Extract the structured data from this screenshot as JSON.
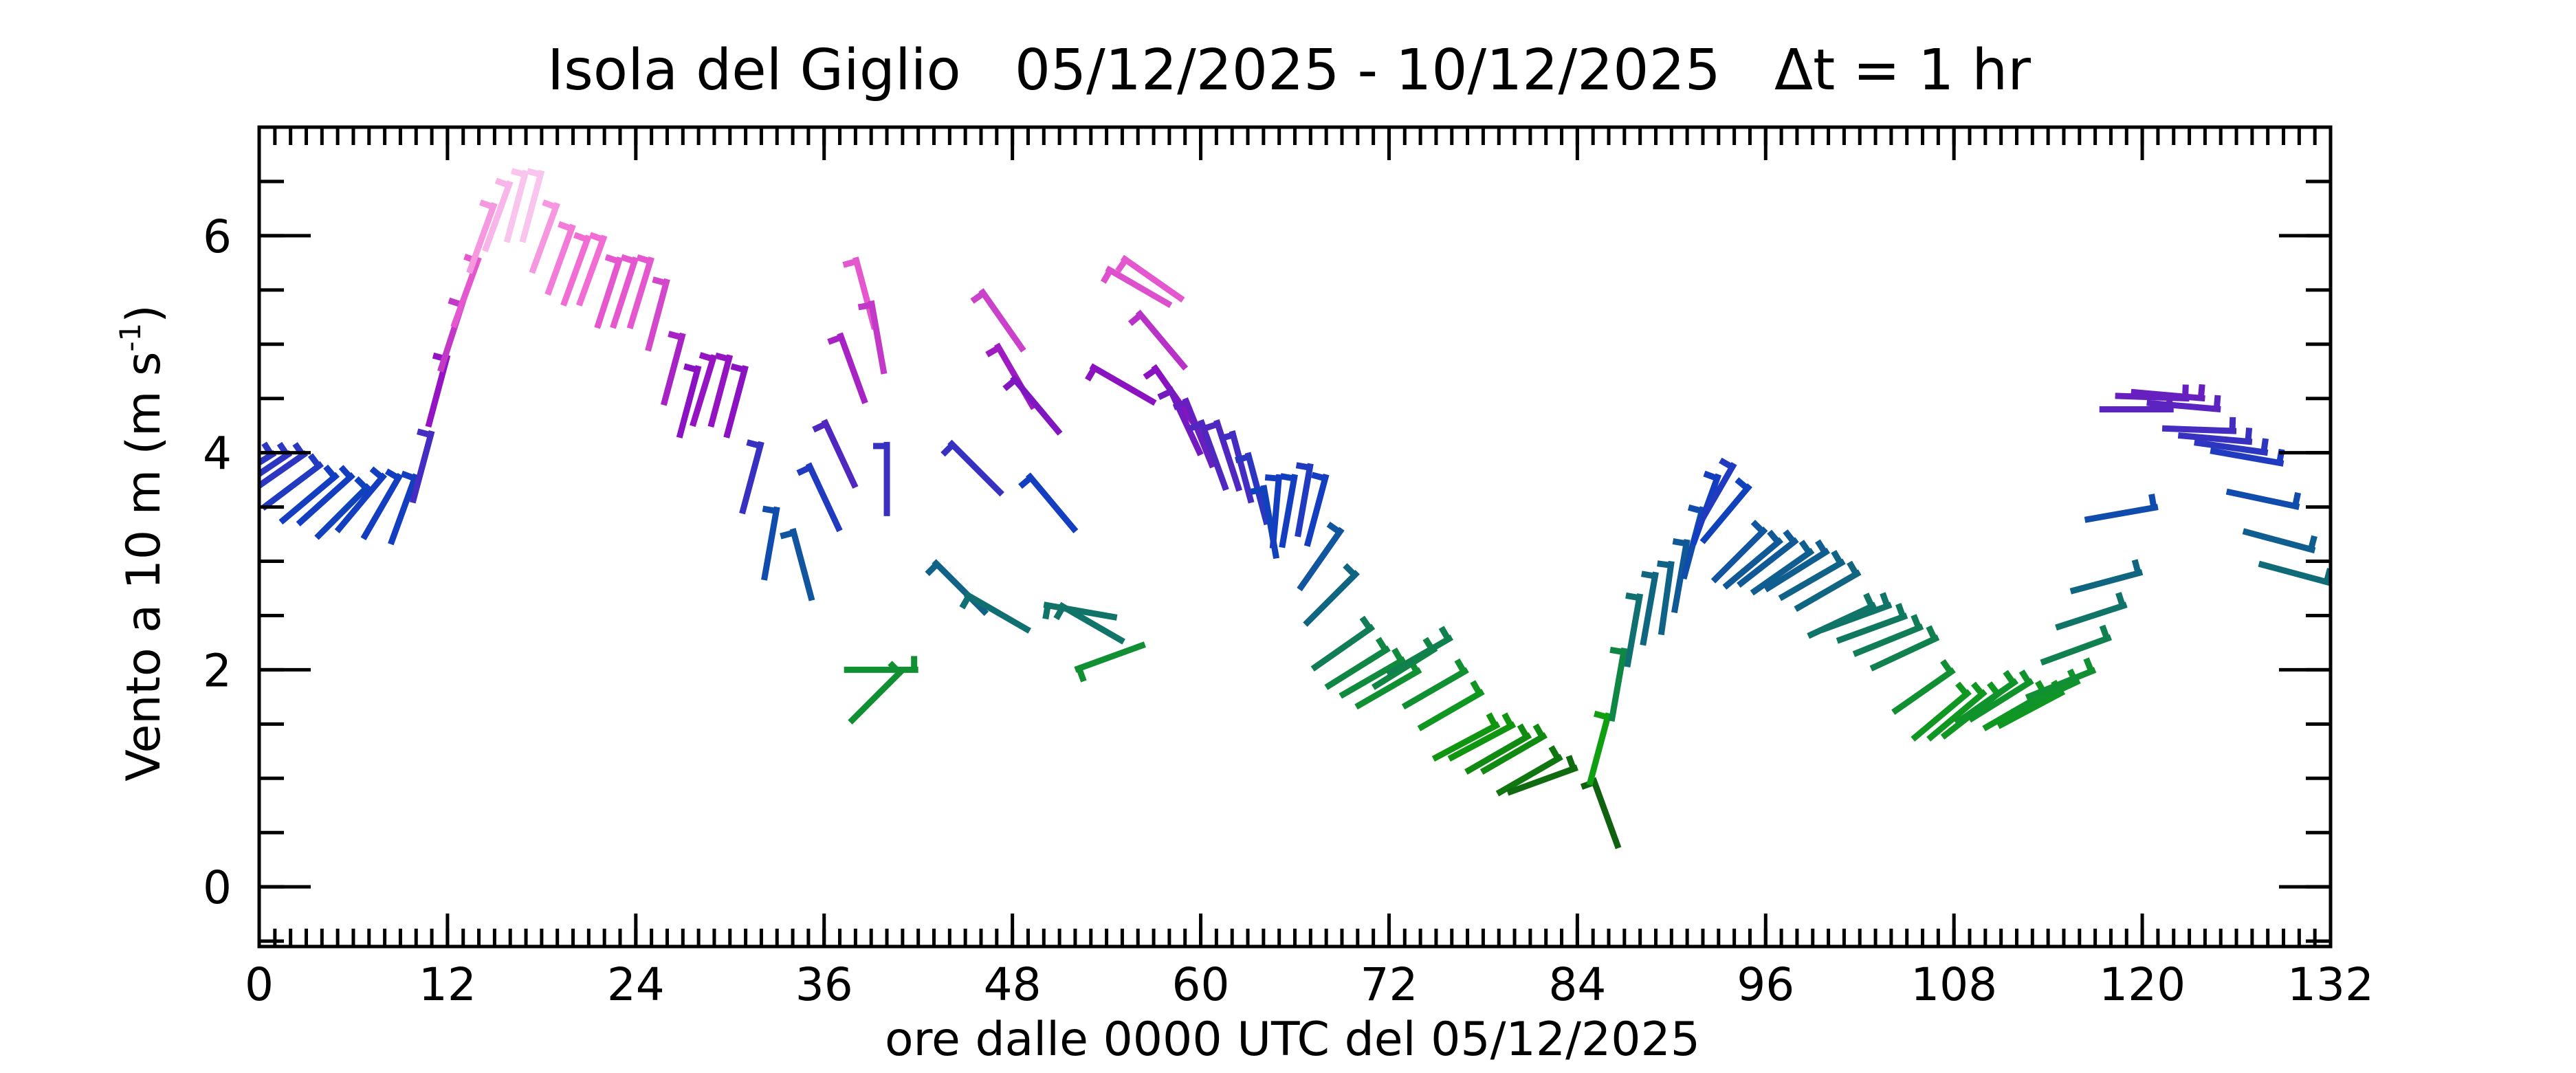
{
  "chart_data": {
    "type": "barbs",
    "title": "Isola del Giglio   05/12/2025 - 10/12/2025   Δt = 1 hr",
    "xlabel": "ore dalle 0000 UTC del 05/12/2025",
    "ylabel": "Vento a 10 m (m s",
    "ylabel_sup": "-1",
    "ylabel_end": ")",
    "xlim": [
      0,
      132
    ],
    "xticks": [
      0,
      12,
      24,
      36,
      48,
      60,
      72,
      84,
      96,
      108,
      120,
      132
    ],
    "xminor_step": 1,
    "ylim": [
      -0.55,
      7
    ],
    "yticks": [
      0,
      2,
      4,
      6
    ],
    "yminor_step": 0.5,
    "colormap": [
      "#000000",
      "#103010",
      "#10a010",
      "#107070",
      "#1040c0",
      "#9010c0",
      "#f060d0",
      "#ffffff"
    ],
    "x": [
      0,
      1,
      2,
      3,
      4,
      5,
      6,
      7,
      8,
      9,
      10,
      11,
      12,
      13,
      14,
      15,
      16,
      17,
      18,
      19,
      20,
      21,
      22,
      23,
      24,
      25,
      26,
      27,
      28,
      29,
      30,
      31,
      32,
      33,
      34,
      35,
      36,
      37,
      38,
      39,
      40,
      41,
      42,
      43,
      44,
      45,
      46,
      47,
      48,
      49,
      50,
      51,
      52,
      53,
      54,
      55,
      56,
      57,
      58,
      59,
      60,
      61,
      62,
      63,
      64,
      65,
      66,
      67,
      68,
      69,
      70,
      71,
      72,
      73,
      74,
      75,
      76,
      77,
      78,
      79,
      80,
      81,
      82,
      83,
      84,
      85,
      86,
      87,
      88,
      89,
      90,
      91,
      92,
      93,
      94,
      95,
      96,
      97,
      98,
      99,
      100,
      101,
      102,
      103,
      104,
      105,
      106,
      107,
      108,
      109,
      110,
      111,
      112,
      113,
      114,
      115,
      116,
      117,
      118,
      119,
      120,
      121,
      122,
      123,
      124,
      125,
      126,
      127,
      128,
      129,
      130,
      131,
      132
    ],
    "values": [
      3.9,
      4.0,
      4.0,
      4.0,
      3.9,
      3.8,
      3.8,
      3.7,
      3.8,
      3.8,
      3.8,
      4.2,
      4.9,
      5.4,
      5.8,
      6.3,
      6.5,
      6.6,
      6.6,
      6.3,
      6.1,
      6.0,
      6.0,
      5.8,
      5.8,
      5.8,
      5.6,
      5.1,
      4.8,
      4.9,
      4.9,
      4.8,
      4.1,
      3.5,
      3.3,
      3.9,
      4.3,
      5.1,
      5.8,
      5.4,
      4.1,
      2.0,
      2.0,
      3.0,
      4.1,
      2.7,
      5.5,
      5.0,
      4.7,
      3.8,
      2.6,
      2.6,
      2.0,
      4.8,
      5.7,
      5.8,
      5.3,
      4.8,
      4.6,
      4.5,
      4.3,
      4.3,
      4.2,
      4.0,
      3.7,
      3.8,
      3.8,
      3.9,
      3.8,
      3.3,
      2.9,
      2.4,
      2.2,
      2.1,
      2.0,
      2.2,
      2.3,
      2.0,
      1.8,
      1.5,
      1.5,
      1.4,
      1.4,
      1.2,
      1.1,
      1.0,
      1.6,
      2.2,
      2.7,
      2.9,
      3.0,
      3.2,
      3.5,
      3.8,
      3.9,
      3.7,
      3.3,
      3.2,
      3.2,
      3.1,
      3.1,
      3.0,
      2.9,
      2.6,
      2.6,
      2.5,
      2.4,
      2.3,
      2.0,
      1.8,
      1.8,
      1.8,
      1.9,
      1.9,
      1.8,
      1.8,
      1.9,
      2.0,
      2.3,
      2.6,
      2.9,
      3.5,
      4.4,
      4.5,
      4.5,
      4.4,
      4.2,
      4.1,
      4.0,
      3.9,
      3.5,
      3.1,
      2.8
    ],
    "directions": [
      240,
      238,
      236,
      235,
      233,
      230,
      228,
      225,
      220,
      210,
      200,
      195,
      195,
      198,
      200,
      200,
      200,
      195,
      195,
      200,
      200,
      200,
      200,
      198,
      198,
      197,
      195,
      195,
      195,
      197,
      195,
      195,
      195,
      190,
      165,
      155,
      155,
      160,
      165,
      170,
      180,
      225,
      270,
      135,
      135,
      120,
      145,
      150,
      140,
      140,
      100,
      120,
      70,
      120,
      120,
      125,
      140,
      145,
      155,
      158,
      160,
      162,
      165,
      165,
      170,
      185,
      190,
      190,
      195,
      215,
      225,
      235,
      238,
      240,
      240,
      238,
      240,
      240,
      240,
      242,
      242,
      240,
      240,
      240,
      250,
      160,
      195,
      190,
      190,
      190,
      188,
      190,
      195,
      200,
      210,
      220,
      225,
      230,
      232,
      235,
      238,
      240,
      240,
      245,
      250,
      250,
      248,
      245,
      235,
      230,
      230,
      232,
      235,
      238,
      240,
      242,
      245,
      248,
      250,
      252,
      255,
      260,
      270,
      272,
      275,
      275,
      272,
      275,
      278,
      280,
      282,
      285,
      285
    ]
  }
}
